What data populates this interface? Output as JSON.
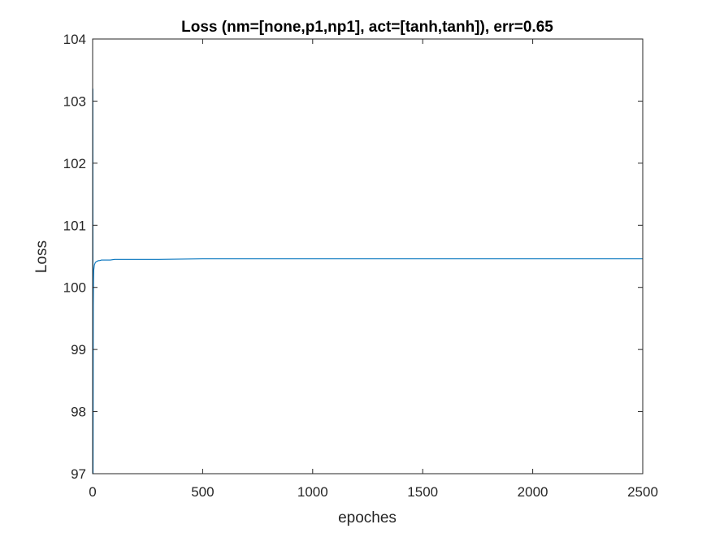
{
  "chart_data": {
    "type": "line",
    "title": "Loss (nm=[none,p1,np1], act=[tanh,tanh]), err=0.65",
    "xlabel": "epoches",
    "ylabel": "Loss",
    "xlim": [
      0,
      2500
    ],
    "ylim": [
      97,
      104
    ],
    "xticks": [
      0,
      500,
      1000,
      1500,
      2000,
      2500
    ],
    "yticks": [
      97,
      98,
      99,
      100,
      101,
      102,
      103,
      104
    ],
    "grid": false,
    "legend": "none",
    "line_color": "#0072BD",
    "series": [
      {
        "x": [
          1,
          2,
          3,
          4,
          5,
          6,
          7,
          8,
          10,
          12,
          15,
          20,
          25,
          30,
          40,
          50,
          60,
          80,
          100,
          150,
          200,
          300,
          500,
          700,
          1000,
          1500,
          2000,
          2500
        ],
        "y": [
          103.2,
          97.0,
          99.7,
          100.1,
          100.28,
          100.3,
          100.33,
          100.36,
          100.38,
          100.4,
          100.41,
          100.42,
          100.43,
          100.43,
          100.44,
          100.44,
          100.44,
          100.44,
          100.45,
          100.45,
          100.45,
          100.45,
          100.46,
          100.46,
          100.46,
          100.46,
          100.46,
          100.46
        ]
      }
    ]
  }
}
